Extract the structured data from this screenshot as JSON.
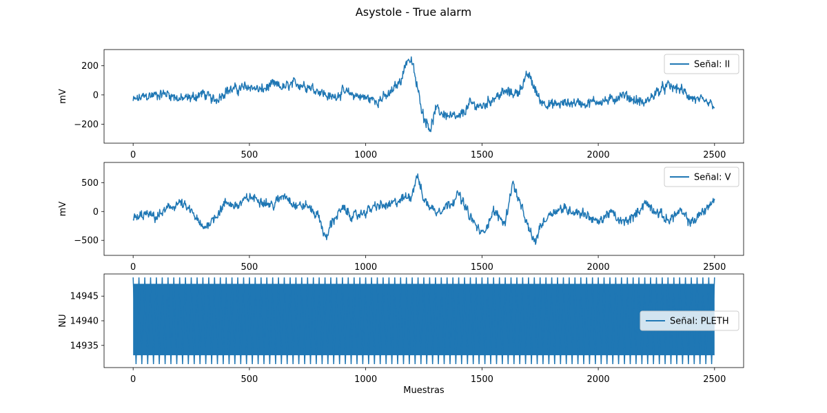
{
  "figure": {
    "title": "Asystole - True alarm",
    "xlabel": "Muestras"
  },
  "chart_data": [
    {
      "type": "line",
      "ylabel": "mV",
      "xlim": [
        -125,
        2625
      ],
      "ylim": [
        -330,
        310
      ],
      "xticks": [
        0,
        500,
        1000,
        1500,
        2000,
        2500
      ],
      "yticks": [
        -200,
        0,
        200
      ],
      "legend": "top-right",
      "series": [
        {
          "name": "Señal: II",
          "color": "#1f77b4",
          "x": [
            0,
            50,
            100,
            150,
            200,
            250,
            300,
            350,
            400,
            450,
            500,
            550,
            600,
            650,
            700,
            750,
            800,
            850,
            900,
            950,
            1000,
            1050,
            1100,
            1150,
            1180,
            1200,
            1220,
            1250,
            1280,
            1300,
            1350,
            1400,
            1450,
            1500,
            1550,
            1600,
            1650,
            1700,
            1750,
            1800,
            1850,
            1900,
            1950,
            2000,
            2050,
            2100,
            2150,
            2200,
            2250,
            2300,
            2350,
            2400,
            2450,
            2500
          ],
          "values": [
            -40,
            -10,
            0,
            10,
            -30,
            -20,
            10,
            -40,
            30,
            40,
            60,
            30,
            70,
            50,
            80,
            60,
            30,
            -20,
            20,
            0,
            -20,
            -40,
            0,
            100,
            250,
            220,
            60,
            -150,
            -230,
            -100,
            -140,
            -160,
            -60,
            -80,
            -20,
            20,
            10,
            140,
            -40,
            -70,
            -60,
            -50,
            -60,
            -40,
            -40,
            0,
            -30,
            -60,
            20,
            60,
            40,
            -20,
            -50,
            -70
          ],
          "noise_amplitude": 45
        }
      ]
    },
    {
      "type": "line",
      "ylabel": "mV",
      "xlim": [
        -125,
        2625
      ],
      "ylim": [
        -760,
        850
      ],
      "xticks": [
        0,
        500,
        1000,
        1500,
        2000,
        2500
      ],
      "yticks": [
        -500,
        0,
        500
      ],
      "legend": "top-right",
      "series": [
        {
          "name": "Señal: V",
          "color": "#1f77b4",
          "x": [
            0,
            50,
            100,
            150,
            200,
            250,
            300,
            350,
            400,
            450,
            500,
            550,
            600,
            650,
            700,
            750,
            800,
            830,
            850,
            900,
            950,
            1000,
            1050,
            1100,
            1150,
            1200,
            1220,
            1250,
            1300,
            1350,
            1400,
            1450,
            1500,
            1550,
            1600,
            1630,
            1650,
            1700,
            1730,
            1750,
            1800,
            1850,
            1900,
            1950,
            2000,
            2050,
            2100,
            2150,
            2200,
            2250,
            2300,
            2350,
            2400,
            2450,
            2500
          ],
          "values": [
            -150,
            -50,
            -100,
            50,
            150,
            0,
            -300,
            -100,
            150,
            100,
            250,
            200,
            100,
            300,
            100,
            100,
            -100,
            -500,
            -200,
            50,
            -100,
            0,
            100,
            100,
            200,
            300,
            650,
            200,
            0,
            100,
            300,
            -100,
            -400,
            0,
            -200,
            500,
            300,
            -300,
            -550,
            -250,
            0,
            50,
            0,
            -50,
            -200,
            0,
            -200,
            -100,
            150,
            0,
            -150,
            0,
            -200,
            0,
            200
          ],
          "noise_amplitude": 110
        }
      ]
    },
    {
      "type": "line",
      "ylabel": "NU",
      "xlim": [
        -125,
        2625
      ],
      "ylim": [
        14930.5,
        14949.5
      ],
      "xticks": [
        0,
        500,
        1000,
        1500,
        2000,
        2500
      ],
      "yticks": [
        14935,
        14940,
        14945
      ],
      "legend": "center-right",
      "series": [
        {
          "name": "Señal: PLETH",
          "color": "#1f77b4",
          "x_range": [
            0,
            2500
          ],
          "oscillation_min": 14931.2,
          "oscillation_max": 14948.8,
          "band_min": 14933,
          "band_max": 14947.5,
          "period_samples": 25
        }
      ]
    }
  ]
}
